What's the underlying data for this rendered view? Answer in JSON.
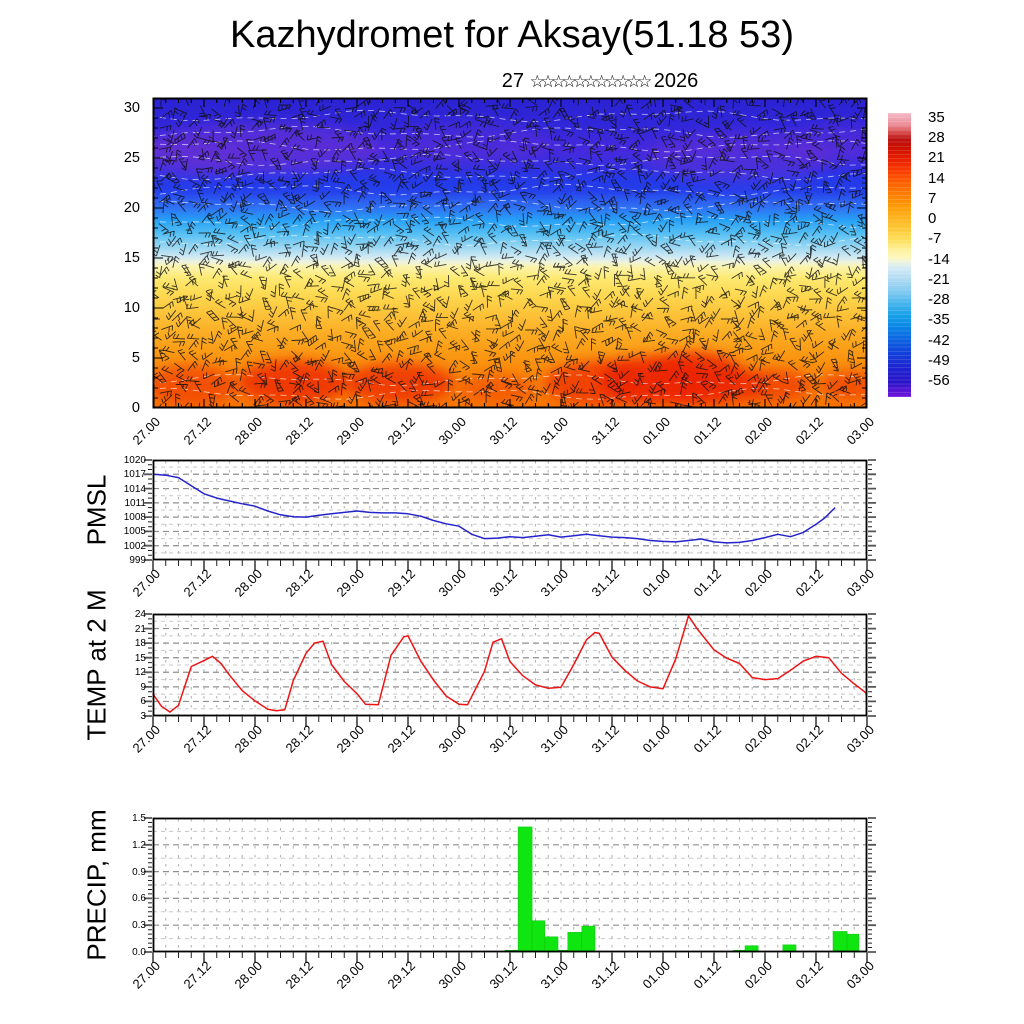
{
  "title": "Kazhydromet for Aksay(51.18 53)",
  "subtitle": {
    "day": "27",
    "stars": "☆☆☆☆☆☆☆☆☆☆☆",
    "year": "2026"
  },
  "x_axis": {
    "tick_labels": [
      "27.00",
      "27.12",
      "28.00",
      "28.12",
      "29.00",
      "29.12",
      "30.00",
      "30.12",
      "31.00",
      "31.12",
      "01.00",
      "01.12",
      "02.00",
      "02.12",
      "03.00"
    ],
    "hours_span": 168,
    "label_step_hours": 12,
    "minor_tick_hours": 3,
    "grid_dot_step_hours": 3
  },
  "colors": {
    "pmsl_line": "#2424cc",
    "temp_line": "#ee1414",
    "precip_bar": "#0fe60f",
    "precip_bar_edge": "#0abf0a",
    "grid_major": "#8f8f8f",
    "grid_minor": "#c8c8c8",
    "grid_dots": "#b5b5b5",
    "axis": "#000000"
  },
  "chart_data": [
    {
      "type": "heatmap",
      "id": "cross_section",
      "description": "time-height temperature cross-section with wind barbs",
      "overlay": "wind-barbs",
      "ylim_km": [
        0,
        31
      ],
      "yticks": [
        0,
        5,
        10,
        15,
        20,
        25,
        30
      ],
      "ytick_labels": [
        "0",
        "5",
        "10",
        "15",
        "20",
        "25",
        "30"
      ],
      "colorbar_ticks": [
        "35",
        "28",
        "21",
        "14",
        "7",
        "0",
        "-7",
        "-14",
        "-21",
        "-28",
        "-35",
        "-42",
        "-49",
        "-56"
      ],
      "colorbar_range": [
        38,
        -60
      ],
      "palette": [
        {
          "v": 38,
          "c": "#f4bac6"
        },
        {
          "v": 34,
          "c": "#eb8f9a"
        },
        {
          "v": 31,
          "c": "#d44444"
        },
        {
          "v": 29,
          "c": "#bb1111"
        },
        {
          "v": 26,
          "c": "#cc0f00"
        },
        {
          "v": 22,
          "c": "#e81f00"
        },
        {
          "v": 18,
          "c": "#fa3c00"
        },
        {
          "v": 14,
          "c": "#fb5f00"
        },
        {
          "v": 10,
          "c": "#fc7d00"
        },
        {
          "v": 6,
          "c": "#fd9a06"
        },
        {
          "v": 2,
          "c": "#fdb21c"
        },
        {
          "v": -2,
          "c": "#fdc838"
        },
        {
          "v": -6,
          "c": "#fde05e"
        },
        {
          "v": -9,
          "c": "#fef09a"
        },
        {
          "v": -12,
          "c": "#fdf8c0"
        },
        {
          "v": -13.5,
          "c": "#eaf2e2"
        },
        {
          "v": -16,
          "c": "#cfe8f6"
        },
        {
          "v": -20,
          "c": "#a8d8f2"
        },
        {
          "v": -24,
          "c": "#7cc8f0"
        },
        {
          "v": -28,
          "c": "#42b2ec"
        },
        {
          "v": -32,
          "c": "#16a0e8"
        },
        {
          "v": -36,
          "c": "#0883e6"
        },
        {
          "v": -40,
          "c": "#0b64e2"
        },
        {
          "v": -45,
          "c": "#1240da"
        },
        {
          "v": -50,
          "c": "#1d22d0"
        },
        {
          "v": -55,
          "c": "#2a14c8"
        },
        {
          "v": -57,
          "c": "#4a14d0"
        },
        {
          "v": -60,
          "c": "#7014dc"
        }
      ],
      "band_profile": [
        {
          "km": 31,
          "c": "#2a22d2"
        },
        {
          "km": 28.2,
          "c": "#3127da"
        },
        {
          "km": 25.8,
          "c": "#4629dc"
        },
        {
          "km": 23.8,
          "c": "#3031e2"
        },
        {
          "km": 22.4,
          "c": "#2840ea"
        },
        {
          "km": 21.2,
          "c": "#2b52ee"
        },
        {
          "km": 20,
          "c": "#2f72f4"
        },
        {
          "km": 18.8,
          "c": "#27a0f6"
        },
        {
          "km": 17.4,
          "c": "#56c0f4"
        },
        {
          "km": 16,
          "c": "#9ed8f2"
        },
        {
          "km": 15.1,
          "c": "#cfe9f3"
        },
        {
          "km": 14.6,
          "c": "#eef3dc"
        },
        {
          "km": 14.1,
          "c": "#fbf3ad"
        },
        {
          "km": 13,
          "c": "#fdea72"
        },
        {
          "km": 11.4,
          "c": "#fdda52"
        },
        {
          "km": 9.5,
          "c": "#fcc43a"
        },
        {
          "km": 7.5,
          "c": "#fbad24"
        },
        {
          "km": 5.2,
          "c": "#fa9712"
        },
        {
          "km": 3,
          "c": "#f98608"
        },
        {
          "km": 1,
          "c": "#f87a04"
        },
        {
          "km": 0,
          "c": "#f87503"
        }
      ],
      "cold_band": {
        "km0": 21.4,
        "km1": 23.2,
        "color": "#2237ea",
        "opacity": 0.6
      },
      "purple_blobs": [
        [
          26,
          26,
          28,
          2.6,
          0.55
        ],
        [
          9,
          25,
          14,
          2.0,
          0.4
        ],
        [
          75,
          26.5,
          19,
          2.2,
          0.25
        ],
        [
          138,
          25,
          22,
          2.6,
          0.4
        ],
        [
          162,
          26.5,
          14,
          2.0,
          0.3
        ]
      ],
      "red_blobs": [
        [
          9,
          2.3,
          11,
          2.0,
          0.5
        ],
        [
          33,
          2.6,
          13,
          2.2,
          0.75
        ],
        [
          58,
          2.5,
          13,
          2.0,
          0.7
        ],
        [
          81,
          2.0,
          9,
          1.4,
          0.35
        ],
        [
          105,
          2.5,
          13,
          2.2,
          0.65
        ],
        [
          118,
          2.8,
          13,
          2.4,
          0.8
        ],
        [
          128,
          3.0,
          11,
          2.6,
          0.8
        ],
        [
          135,
          2.3,
          9,
          1.8,
          0.55
        ],
        [
          146,
          2.3,
          9,
          1.6,
          0.55
        ],
        [
          164,
          2.3,
          7,
          1.4,
          0.5
        ]
      ]
    },
    {
      "type": "line",
      "id": "pmsl",
      "label": "PMSL",
      "ylim": [
        999,
        1020
      ],
      "yticks": [
        999,
        1002,
        1005,
        1008,
        1011,
        1014,
        1017,
        1020
      ],
      "ytick_labels": [
        "999",
        "1002",
        "1005",
        "1008",
        "1011",
        "1014",
        "1017",
        "1020"
      ],
      "grid_majors": [
        1002,
        1005,
        1008,
        1011,
        1014,
        1017
      ],
      "grid_minors": [
        1000.5,
        1003.5,
        1006.5,
        1009.5,
        1012.5,
        1015.5,
        1018.5
      ],
      "axis_minor_step": 1,
      "points": [
        [
          0,
          1017.0
        ],
        [
          3,
          1016.8
        ],
        [
          6,
          1016.3
        ],
        [
          9,
          1014.6
        ],
        [
          12,
          1012.9
        ],
        [
          15,
          1012.0
        ],
        [
          18,
          1011.4
        ],
        [
          21,
          1010.8
        ],
        [
          24,
          1010.3
        ],
        [
          27,
          1009.3
        ],
        [
          30,
          1008.5
        ],
        [
          33,
          1008.1
        ],
        [
          36,
          1008.0
        ],
        [
          39,
          1008.4
        ],
        [
          42,
          1008.7
        ],
        [
          45,
          1009.0
        ],
        [
          48,
          1009.3
        ],
        [
          51,
          1009.0
        ],
        [
          54,
          1008.9
        ],
        [
          57,
          1008.9
        ],
        [
          60,
          1008.7
        ],
        [
          63,
          1008.2
        ],
        [
          66,
          1007.3
        ],
        [
          69,
          1006.6
        ],
        [
          72,
          1006.1
        ],
        [
          75,
          1004.4
        ],
        [
          78,
          1003.5
        ],
        [
          81,
          1003.6
        ],
        [
          84,
          1003.9
        ],
        [
          87,
          1003.7
        ],
        [
          90,
          1004.0
        ],
        [
          93,
          1004.3
        ],
        [
          96,
          1003.8
        ],
        [
          99,
          1004.1
        ],
        [
          102,
          1004.4
        ],
        [
          105,
          1004.1
        ],
        [
          108,
          1003.8
        ],
        [
          111,
          1003.7
        ],
        [
          114,
          1003.5
        ],
        [
          117,
          1003.1
        ],
        [
          120,
          1002.9
        ],
        [
          123,
          1002.8
        ],
        [
          126,
          1003.1
        ],
        [
          129,
          1003.4
        ],
        [
          132,
          1002.8
        ],
        [
          135,
          1002.6
        ],
        [
          138,
          1002.7
        ],
        [
          141,
          1003.1
        ],
        [
          144,
          1003.7
        ],
        [
          147,
          1004.4
        ],
        [
          150,
          1003.9
        ],
        [
          153,
          1004.8
        ],
        [
          156,
          1006.5
        ],
        [
          158,
          1007.8
        ],
        [
          160.5,
          1010.0
        ]
      ]
    },
    {
      "type": "line",
      "id": "temp2m",
      "label": "TEMP at 2 M",
      "ylim": [
        3,
        24
      ],
      "yticks": [
        3,
        6,
        9,
        12,
        15,
        18,
        21,
        24
      ],
      "ytick_labels": [
        "3",
        "6",
        "9",
        "12",
        "15",
        "18",
        "21",
        "24"
      ],
      "grid_majors": [
        6,
        9,
        12,
        15,
        18,
        21
      ],
      "grid_minors": [
        4.5,
        7.5,
        10.5,
        13.5,
        16.5,
        19.5,
        22.5
      ],
      "axis_minor_step": 1,
      "points": [
        [
          0,
          7.5
        ],
        [
          2,
          5.0
        ],
        [
          4,
          3.8
        ],
        [
          6,
          5.2
        ],
        [
          9,
          13.2
        ],
        [
          12,
          14.4
        ],
        [
          14,
          15.3
        ],
        [
          16,
          13.8
        ],
        [
          18,
          11.4
        ],
        [
          21,
          8.2
        ],
        [
          24,
          6.1
        ],
        [
          27,
          4.4
        ],
        [
          29,
          4.1
        ],
        [
          31,
          4.3
        ],
        [
          33,
          10.3
        ],
        [
          36,
          15.9
        ],
        [
          38,
          18.0
        ],
        [
          40,
          18.4
        ],
        [
          42,
          13.6
        ],
        [
          45,
          10.1
        ],
        [
          48,
          7.6
        ],
        [
          50,
          5.4
        ],
        [
          53,
          5.3
        ],
        [
          56,
          15.5
        ],
        [
          59,
          19.3
        ],
        [
          60,
          19.5
        ],
        [
          63,
          14.3
        ],
        [
          66,
          10.4
        ],
        [
          69,
          7.1
        ],
        [
          72,
          5.4
        ],
        [
          74,
          5.3
        ],
        [
          78,
          12.2
        ],
        [
          80,
          18.2
        ],
        [
          82,
          18.9
        ],
        [
          84,
          14.2
        ],
        [
          87,
          11.3
        ],
        [
          90,
          9.4
        ],
        [
          93,
          8.7
        ],
        [
          96,
          8.9
        ],
        [
          99,
          13.6
        ],
        [
          102,
          18.7
        ],
        [
          104,
          20.2
        ],
        [
          105,
          20.0
        ],
        [
          108,
          15.1
        ],
        [
          111,
          12.4
        ],
        [
          114,
          10.2
        ],
        [
          117,
          9.0
        ],
        [
          120,
          8.6
        ],
        [
          123,
          14.8
        ],
        [
          126,
          23.6
        ],
        [
          128,
          21.0
        ],
        [
          132,
          16.6
        ],
        [
          135,
          14.9
        ],
        [
          138,
          13.8
        ],
        [
          141,
          10.9
        ],
        [
          144,
          10.5
        ],
        [
          147,
          10.7
        ],
        [
          150,
          12.4
        ],
        [
          153,
          14.3
        ],
        [
          156,
          15.3
        ],
        [
          159,
          15.0
        ],
        [
          162,
          11.8
        ],
        [
          165,
          9.6
        ],
        [
          168,
          7.6
        ]
      ]
    },
    {
      "type": "bar",
      "id": "precip",
      "label": "PRECIP, mm",
      "ylim": [
        0,
        1.5
      ],
      "yticks": [
        0.0,
        0.3,
        0.6,
        0.9,
        1.2,
        1.5
      ],
      "ytick_labels": [
        "0.0",
        "0.3",
        "0.6",
        "0.9",
        "1.2",
        "1.5"
      ],
      "grid_majors": [
        0.3,
        0.6,
        0.9,
        1.2
      ],
      "grid_minors": [
        0.15,
        0.45,
        0.75,
        1.05,
        1.35
      ],
      "axis_minor_step": 0.05,
      "bars": [
        [
          82.8,
          85.9,
          0.02
        ],
        [
          85.9,
          89.2,
          1.4
        ],
        [
          89.2,
          92.2,
          0.35
        ],
        [
          92.2,
          95.3,
          0.17
        ],
        [
          95.3,
          97.6,
          0.02
        ],
        [
          97.6,
          100.9,
          0.22
        ],
        [
          100.9,
          104.0,
          0.29
        ],
        [
          136.5,
          139.3,
          0.02
        ],
        [
          139.3,
          142.4,
          0.07
        ],
        [
          148.2,
          151.3,
          0.08
        ],
        [
          160.0,
          163.3,
          0.23
        ],
        [
          163.3,
          166.1,
          0.2
        ],
        [
          166.1,
          168.0,
          0.01
        ]
      ]
    }
  ]
}
